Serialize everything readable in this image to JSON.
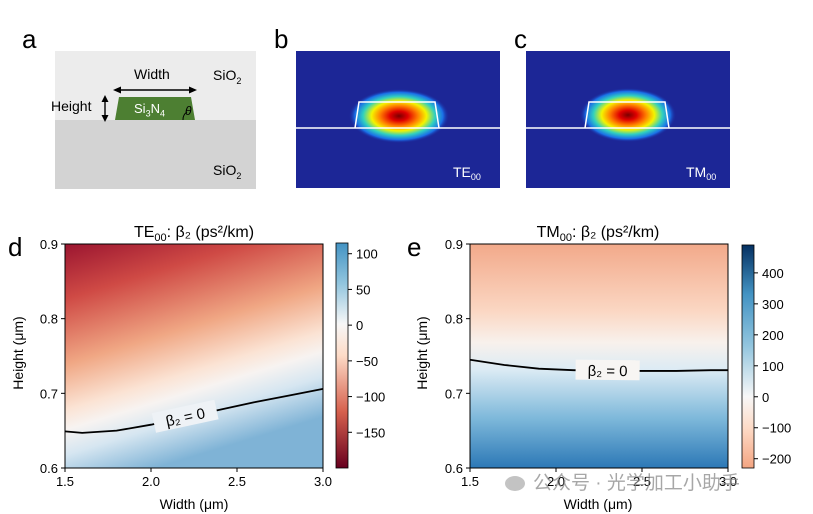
{
  "panels": {
    "a": {
      "letter": "a",
      "width_label": "Width",
      "height_label": "Height",
      "top_clad": "SiO2",
      "bottom_clad": "SiO2",
      "core": "Si3N4",
      "angle": "θ"
    },
    "b": {
      "letter": "b",
      "mode_label": "TE",
      "mode_sub": "00"
    },
    "c": {
      "letter": "c",
      "mode_label": "TM",
      "mode_sub": "00"
    }
  },
  "chart_data": [
    {
      "type": "heatmap",
      "panel": "d",
      "letter": "d",
      "title_main": "TE",
      "title_sub": "00",
      "title_rest": ": β₂ (ps²/km)",
      "xlabel": "Width (μm)",
      "ylabel": "Height (μm)",
      "xlim": [
        1.5,
        3.0
      ],
      "ylim": [
        0.6,
        0.9
      ],
      "xticks": [
        "1.5",
        "2.0",
        "2.5",
        "3.0"
      ],
      "yticks": [
        "0.6",
        "0.7",
        "0.8",
        "0.9"
      ],
      "colormap": "RdBu",
      "colorbar_range": [
        -200,
        115
      ],
      "colorbar_ticks": [
        "100",
        "50",
        "0",
        "−50",
        "−100",
        "−150"
      ],
      "contour_label": "β₂ = 0",
      "zero_contour": {
        "x": [
          1.5,
          1.6,
          1.8,
          2.0,
          2.2,
          2.4,
          2.6,
          2.8,
          3.0
        ],
        "y": [
          0.649,
          0.647,
          0.65,
          0.658,
          0.668,
          0.678,
          0.688,
          0.697,
          0.706
        ]
      }
    },
    {
      "type": "heatmap",
      "panel": "e",
      "letter": "e",
      "title_main": "TM",
      "title_sub": "00",
      "title_rest": ": β₂ (ps²/km)",
      "xlabel": "Width (μm)",
      "ylabel": "Height (μm)",
      "xlim": [
        1.5,
        3.0
      ],
      "ylim": [
        0.6,
        0.9
      ],
      "xticks": [
        "1.5",
        "2.0",
        "2.5",
        "3.0"
      ],
      "yticks": [
        "0.6",
        "0.7",
        "0.8",
        "0.9"
      ],
      "colormap": "RdBu_r",
      "colorbar_range": [
        -230,
        490
      ],
      "colorbar_ticks": [
        "400",
        "300",
        "200",
        "100",
        "0",
        "−100",
        "−200"
      ],
      "contour_label": "β₂ = 0",
      "zero_contour": {
        "x": [
          1.5,
          1.7,
          1.9,
          2.1,
          2.3,
          2.5,
          2.7,
          2.9,
          3.0
        ],
        "y": [
          0.745,
          0.738,
          0.733,
          0.731,
          0.73,
          0.73,
          0.73,
          0.731,
          0.731
        ]
      }
    }
  ],
  "watermark": "公众号 · 光学加工小助手"
}
